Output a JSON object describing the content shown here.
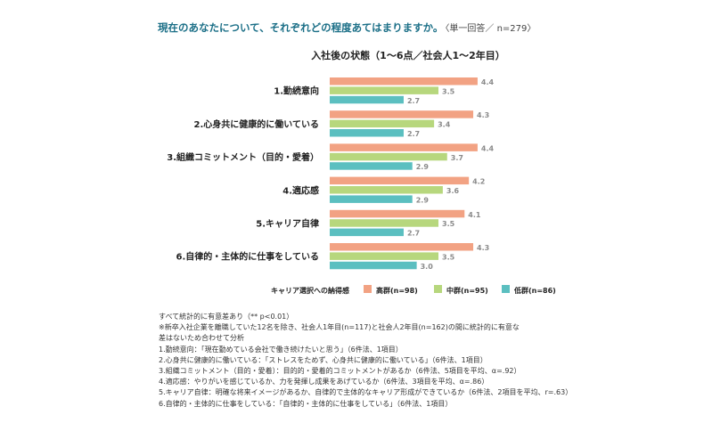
{
  "question": "現在のあなたについて、それぞれどの程度あてはまりますか。",
  "question_meta": "〈単一回答／ n=279〉",
  "chart_data": {
    "type": "bar",
    "orientation": "horizontal",
    "title": "入社後の状態（1〜6点／社会人1〜2年目）",
    "categories": [
      "1.勤続意向",
      "2.心身共に健康的に働いている",
      "3.組織コミットメント（目的・愛着）",
      "4.適応感",
      "5.キャリア自律",
      "6.自律的・主体的に仕事をしている"
    ],
    "series": [
      {
        "name": "高群(n=98)",
        "color": "#f2a283",
        "values": [
          4.4,
          4.3,
          4.4,
          4.2,
          4.1,
          4.3
        ]
      },
      {
        "name": "中群(n=95)",
        "color": "#b7d77d",
        "values": [
          3.5,
          3.4,
          3.7,
          3.6,
          3.5,
          3.5
        ]
      },
      {
        "name": "低群(n=86)",
        "color": "#5bbfc0",
        "values": [
          2.7,
          2.7,
          2.9,
          2.9,
          2.7,
          3.0
        ]
      }
    ],
    "value_labels": {
      "高群(n=98)": [
        "4.4",
        "4.3",
        "4.4",
        "4.2",
        "4.1",
        "4.3"
      ],
      "中群(n=95)": [
        "3.5",
        "3.4",
        "3.7",
        "3.6",
        "3.5",
        "3.5"
      ],
      "低群(n=86)": [
        "2.7",
        "2.7",
        "2.9",
        "2.9",
        "2.7",
        "3.0"
      ]
    },
    "legend_title": "キャリア選択への納得感",
    "legend_position": "bottom",
    "xlim": [
      1,
      6
    ],
    "grid": false
  },
  "notes": [
    "すべて統計的に有意差あり（** p<0.01）",
    "※新卒入社企業を離職していた12名を除き、社会人1年目(n=117)と社会人2年目(n=162)の間に統計的に有意な",
    "差はないため合わせて分析",
    "1.勤続意向：「現在勤めている会社で働き続けたいと思う」（6件法、1項目）",
    "2.心身共に健康的に働いている：「ストレスをためず、心身共に健康的に働いている」（6件法、1項目）",
    "3.組織コミットメント（目的・愛着）：目的的・愛着的コミットメントがあるか（6件法、5項目を平均、α=.92）",
    "4.適応感：やりがいを感じているか、力を発揮し成果をあげているか（6件法、3項目を平均、α=.86）",
    "5.キャリア自律：明確な将来イメージがあるか、自律的で主体的なキャリア形成ができているか（6件法、2項目を平均、r=.63）",
    "6.自律的・主体的に仕事をしている：「自律的・主体的に仕事をしている」（6件法、1項目）"
  ]
}
